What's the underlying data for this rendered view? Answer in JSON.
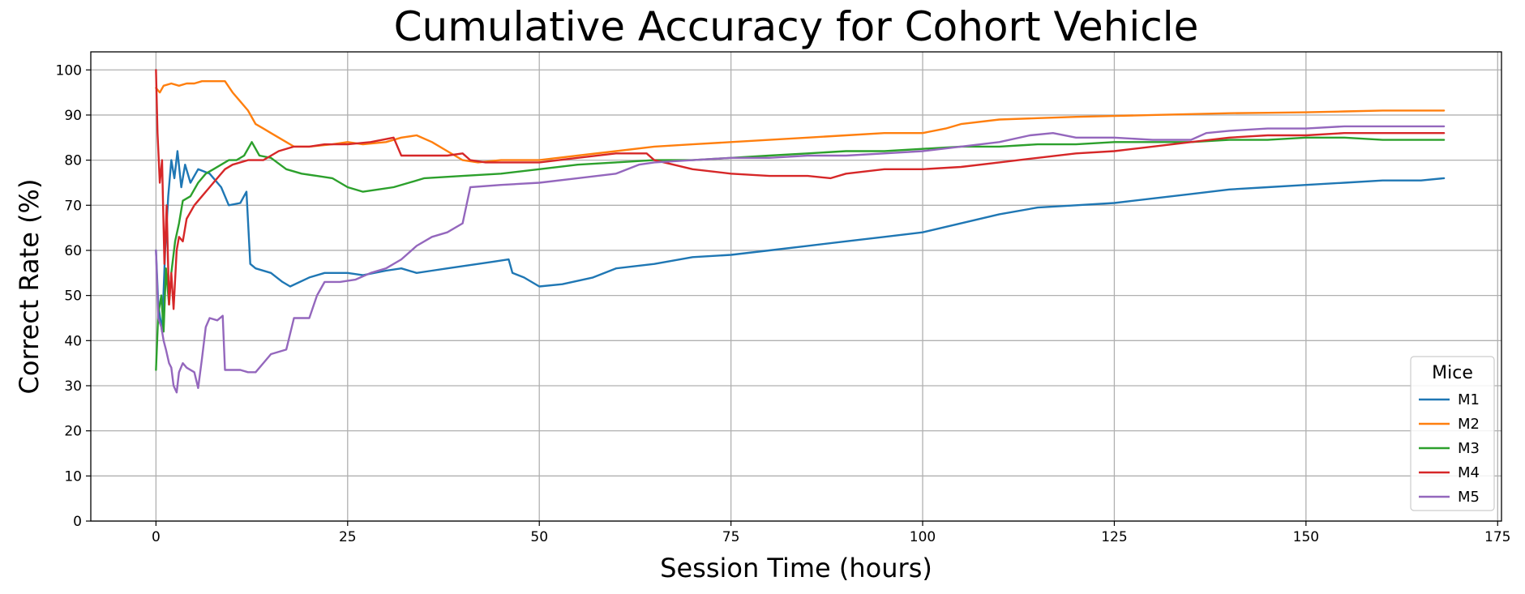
{
  "chart_data": {
    "type": "line",
    "title": "Cumulative Accuracy for Cohort Vehicle",
    "xlabel": "Session Time (hours)",
    "ylabel": "Correct Rate (%)",
    "xlim": [
      -8.5,
      175.5
    ],
    "ylim": [
      0,
      104
    ],
    "xticks": [
      0,
      25,
      50,
      75,
      100,
      125,
      150,
      175
    ],
    "yticks": [
      0,
      10,
      20,
      30,
      40,
      50,
      60,
      70,
      80,
      90,
      100
    ],
    "grid": true,
    "legend": {
      "title": "Mice",
      "position": "lower-right"
    },
    "series": [
      {
        "name": "M1",
        "color": "#1f77b4",
        "points": [
          [
            0,
            60
          ],
          [
            0.3,
            48
          ],
          [
            0.8,
            42
          ],
          [
            1.2,
            60
          ],
          [
            1.6,
            72
          ],
          [
            2,
            80
          ],
          [
            2.4,
            76
          ],
          [
            2.8,
            82
          ],
          [
            3.3,
            74
          ],
          [
            3.8,
            79
          ],
          [
            4.5,
            75
          ],
          [
            5.5,
            78
          ],
          [
            7,
            77
          ],
          [
            8.5,
            74
          ],
          [
            9.5,
            70
          ],
          [
            11,
            70.5
          ],
          [
            11.8,
            73
          ],
          [
            12.3,
            57
          ],
          [
            13,
            56
          ],
          [
            15,
            55
          ],
          [
            16.5,
            53
          ],
          [
            17.5,
            52
          ],
          [
            20,
            54
          ],
          [
            22,
            55
          ],
          [
            25,
            55
          ],
          [
            27,
            54.5
          ],
          [
            30,
            55.5
          ],
          [
            32,
            56
          ],
          [
            34,
            55
          ],
          [
            36,
            55.5
          ],
          [
            38,
            56
          ],
          [
            40,
            56.5
          ],
          [
            42,
            57
          ],
          [
            44,
            57.5
          ],
          [
            46,
            58
          ],
          [
            46.5,
            55
          ],
          [
            48,
            54
          ],
          [
            50,
            52
          ],
          [
            53,
            52.5
          ],
          [
            57,
            54
          ],
          [
            60,
            56
          ],
          [
            65,
            57
          ],
          [
            70,
            58.5
          ],
          [
            75,
            59
          ],
          [
            80,
            60
          ],
          [
            85,
            61
          ],
          [
            90,
            62
          ],
          [
            95,
            63
          ],
          [
            100,
            64
          ],
          [
            105,
            66
          ],
          [
            110,
            68
          ],
          [
            115,
            69.5
          ],
          [
            120,
            70
          ],
          [
            125,
            70.5
          ],
          [
            130,
            71.5
          ],
          [
            135,
            72.5
          ],
          [
            140,
            73.5
          ],
          [
            145,
            74
          ],
          [
            150,
            74.5
          ],
          [
            155,
            75
          ],
          [
            160,
            75.5
          ],
          [
            165,
            75.5
          ],
          [
            168,
            76
          ]
        ]
      },
      {
        "name": "M2",
        "color": "#ff7f0e",
        "points": [
          [
            0,
            96
          ],
          [
            0.5,
            95
          ],
          [
            1,
            96.5
          ],
          [
            2,
            97
          ],
          [
            3,
            96.5
          ],
          [
            4,
            97
          ],
          [
            5,
            97
          ],
          [
            6,
            97.5
          ],
          [
            7,
            97.5
          ],
          [
            8,
            97.5
          ],
          [
            9,
            97.5
          ],
          [
            10,
            95
          ],
          [
            11,
            93
          ],
          [
            12,
            91
          ],
          [
            13,
            88
          ],
          [
            14,
            87
          ],
          [
            15,
            86
          ],
          [
            17,
            84
          ],
          [
            18,
            83
          ],
          [
            20,
            83
          ],
          [
            23,
            83.5
          ],
          [
            25,
            84
          ],
          [
            27,
            83.5
          ],
          [
            30,
            84
          ],
          [
            32,
            85
          ],
          [
            34,
            85.5
          ],
          [
            36,
            84
          ],
          [
            38,
            82
          ],
          [
            40,
            80
          ],
          [
            42,
            79.5
          ],
          [
            45,
            80
          ],
          [
            50,
            80
          ],
          [
            55,
            81
          ],
          [
            60,
            82
          ],
          [
            65,
            83
          ],
          [
            70,
            83.5
          ],
          [
            75,
            84
          ],
          [
            80,
            84.5
          ],
          [
            85,
            85
          ],
          [
            90,
            85.5
          ],
          [
            95,
            86
          ],
          [
            100,
            86
          ],
          [
            103,
            87
          ],
          [
            105,
            88
          ],
          [
            110,
            89
          ],
          [
            115,
            89.3
          ],
          [
            120,
            89.6
          ],
          [
            125,
            89.8
          ],
          [
            130,
            90
          ],
          [
            135,
            90.2
          ],
          [
            140,
            90.4
          ],
          [
            145,
            90.5
          ],
          [
            150,
            90.6
          ],
          [
            155,
            90.8
          ],
          [
            160,
            91
          ],
          [
            165,
            91
          ],
          [
            168,
            91
          ]
        ]
      },
      {
        "name": "M3",
        "color": "#2ca02c",
        "points": [
          [
            0,
            33.5
          ],
          [
            0.3,
            46
          ],
          [
            0.7,
            50
          ],
          [
            1,
            42
          ],
          [
            1.3,
            56
          ],
          [
            1.7,
            48
          ],
          [
            2,
            55
          ],
          [
            2.5,
            62
          ],
          [
            3,
            66
          ],
          [
            3.5,
            71
          ],
          [
            4.5,
            72
          ],
          [
            5.5,
            75
          ],
          [
            6.5,
            77
          ],
          [
            7.5,
            78
          ],
          [
            8.5,
            79
          ],
          [
            9.5,
            80
          ],
          [
            10.5,
            80
          ],
          [
            11.5,
            81
          ],
          [
            12.5,
            84
          ],
          [
            13.5,
            81
          ],
          [
            15,
            80.5
          ],
          [
            17,
            78
          ],
          [
            19,
            77
          ],
          [
            21,
            76.5
          ],
          [
            23,
            76
          ],
          [
            25,
            74
          ],
          [
            27,
            73
          ],
          [
            29,
            73.5
          ],
          [
            31,
            74
          ],
          [
            33,
            75
          ],
          [
            35,
            76
          ],
          [
            40,
            76.5
          ],
          [
            45,
            77
          ],
          [
            50,
            78
          ],
          [
            55,
            79
          ],
          [
            60,
            79.5
          ],
          [
            65,
            80
          ],
          [
            70,
            80
          ],
          [
            75,
            80.5
          ],
          [
            80,
            81
          ],
          [
            85,
            81.5
          ],
          [
            90,
            82
          ],
          [
            95,
            82
          ],
          [
            100,
            82.5
          ],
          [
            105,
            83
          ],
          [
            110,
            83
          ],
          [
            115,
            83.5
          ],
          [
            120,
            83.5
          ],
          [
            125,
            84
          ],
          [
            130,
            84
          ],
          [
            135,
            84
          ],
          [
            140,
            84.5
          ],
          [
            145,
            84.5
          ],
          [
            150,
            85
          ],
          [
            155,
            85
          ],
          [
            160,
            84.5
          ],
          [
            165,
            84.5
          ],
          [
            168,
            84.5
          ]
        ]
      },
      {
        "name": "M4",
        "color": "#d62728",
        "points": [
          [
            0,
            100
          ],
          [
            0.2,
            86
          ],
          [
            0.5,
            75
          ],
          [
            0.8,
            80
          ],
          [
            1.1,
            57
          ],
          [
            1.4,
            70
          ],
          [
            1.7,
            48
          ],
          [
            2,
            55
          ],
          [
            2.3,
            47
          ],
          [
            2.7,
            60
          ],
          [
            3,
            63
          ],
          [
            3.5,
            62
          ],
          [
            4,
            67
          ],
          [
            5,
            70
          ],
          [
            6,
            72
          ],
          [
            7,
            74
          ],
          [
            8,
            76
          ],
          [
            9,
            78
          ],
          [
            10,
            79
          ],
          [
            12,
            80
          ],
          [
            14,
            80
          ],
          [
            16,
            82
          ],
          [
            18,
            83
          ],
          [
            20,
            83
          ],
          [
            22,
            83.5
          ],
          [
            25,
            83.5
          ],
          [
            28,
            84
          ],
          [
            31,
            85
          ],
          [
            32,
            81
          ],
          [
            35,
            81
          ],
          [
            38,
            81
          ],
          [
            40,
            81.5
          ],
          [
            41,
            80
          ],
          [
            43,
            79.5
          ],
          [
            45,
            79.5
          ],
          [
            50,
            79.5
          ],
          [
            55,
            80.5
          ],
          [
            60,
            81.5
          ],
          [
            64,
            81.5
          ],
          [
            65,
            80
          ],
          [
            70,
            78
          ],
          [
            75,
            77
          ],
          [
            80,
            76.5
          ],
          [
            85,
            76.5
          ],
          [
            88,
            76
          ],
          [
            90,
            77
          ],
          [
            95,
            78
          ],
          [
            100,
            78
          ],
          [
            105,
            78.5
          ],
          [
            110,
            79.5
          ],
          [
            115,
            80.5
          ],
          [
            120,
            81.5
          ],
          [
            125,
            82
          ],
          [
            130,
            83
          ],
          [
            135,
            84
          ],
          [
            140,
            85
          ],
          [
            145,
            85.5
          ],
          [
            150,
            85.5
          ],
          [
            155,
            86
          ],
          [
            160,
            86
          ],
          [
            165,
            86
          ],
          [
            168,
            86
          ]
        ]
      },
      {
        "name": "M5",
        "color": "#9467bd",
        "points": [
          [
            0,
            60
          ],
          [
            0.3,
            45
          ],
          [
            0.7,
            43
          ],
          [
            1,
            40
          ],
          [
            1.3,
            38
          ],
          [
            1.7,
            35
          ],
          [
            2,
            34
          ],
          [
            2.3,
            30
          ],
          [
            2.7,
            28.5
          ],
          [
            3,
            33
          ],
          [
            3.5,
            35
          ],
          [
            4,
            34
          ],
          [
            5,
            33
          ],
          [
            5.5,
            29.5
          ],
          [
            6,
            36
          ],
          [
            6.5,
            43
          ],
          [
            7,
            45
          ],
          [
            8,
            44.5
          ],
          [
            8.7,
            45.5
          ],
          [
            9,
            33.5
          ],
          [
            10,
            33.5
          ],
          [
            11,
            33.5
          ],
          [
            12,
            33
          ],
          [
            13,
            33
          ],
          [
            14,
            35
          ],
          [
            15,
            37
          ],
          [
            17,
            38
          ],
          [
            18,
            45
          ],
          [
            20,
            45
          ],
          [
            21,
            50
          ],
          [
            22,
            53
          ],
          [
            24,
            53
          ],
          [
            26,
            53.5
          ],
          [
            28,
            55
          ],
          [
            30,
            56
          ],
          [
            32,
            58
          ],
          [
            34,
            61
          ],
          [
            36,
            63
          ],
          [
            38,
            64
          ],
          [
            40,
            66
          ],
          [
            41,
            74
          ],
          [
            45,
            74.5
          ],
          [
            50,
            75
          ],
          [
            55,
            76
          ],
          [
            60,
            77
          ],
          [
            63,
            79
          ],
          [
            65,
            79.5
          ],
          [
            70,
            80
          ],
          [
            75,
            80.5
          ],
          [
            80,
            80.5
          ],
          [
            85,
            81
          ],
          [
            90,
            81
          ],
          [
            95,
            81.5
          ],
          [
            100,
            82
          ],
          [
            105,
            83
          ],
          [
            110,
            84
          ],
          [
            114,
            85.5
          ],
          [
            117,
            86
          ],
          [
            120,
            85
          ],
          [
            125,
            85
          ],
          [
            130,
            84.5
          ],
          [
            135,
            84.5
          ],
          [
            137,
            86
          ],
          [
            140,
            86.5
          ],
          [
            145,
            87
          ],
          [
            150,
            87
          ],
          [
            155,
            87.5
          ],
          [
            160,
            87.5
          ],
          [
            165,
            87.5
          ],
          [
            168,
            87.5
          ]
        ]
      }
    ]
  }
}
